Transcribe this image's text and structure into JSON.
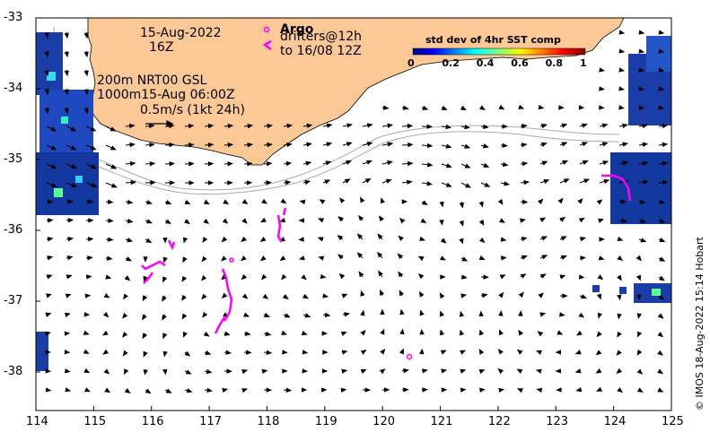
{
  "date_label": "15-Aug-2022",
  "hour_label": "16Z",
  "argo_label": "Argo",
  "drifters_label": "drifters@12h",
  "drifters_until": "to 16/08 12Z",
  "model_line1": "200m  NRT00 GSL",
  "model_line2": "1000m15-Aug 06:00Z",
  "scale_label": "0.5m/s (1kt 24h)",
  "colorbar": {
    "title": "std dev of 4hr SST comp",
    "ticks": [
      "0",
      "0.2",
      "0.4",
      "0.6",
      "0.8",
      "1"
    ]
  },
  "credit": "© IMOS 18-Aug-2022 15:14 Hobart",
  "axes": {
    "x_ticks": [
      "114",
      "115",
      "116",
      "117",
      "118",
      "119",
      "120",
      "121",
      "122",
      "123",
      "124",
      "125"
    ],
    "y_ticks": [
      "-33",
      "-34",
      "-35",
      "-36",
      "-37",
      "-38"
    ]
  },
  "colors": {
    "land": "#fbc896",
    "drifter": "#ff00ff",
    "contour": "#aaaaaa"
  }
}
